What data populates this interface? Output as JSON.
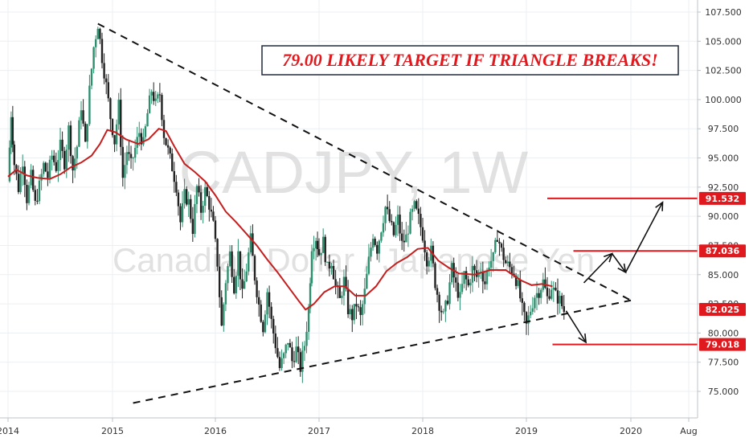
{
  "chart_data": {
    "type": "candlestick",
    "symbol_watermark": "CADJPY, 1W",
    "name_watermark": "Canadian Dollar / Japanese Yen",
    "annotation": "79.00 LIKELY TARGET IF TRIANGLE BREAKS!",
    "x_ticks": [
      "2014",
      "2015",
      "2016",
      "2017",
      "2018",
      "2019",
      "2020",
      "Aug"
    ],
    "y_ticks": [
      "75.000",
      "77.500",
      "80.000",
      "82.500",
      "85.000",
      "87.500",
      "90.000",
      "92.500",
      "95.000",
      "97.500",
      "100.000",
      "102.500",
      "105.000",
      "107.500"
    ],
    "ylim": [
      72.5,
      108.5
    ],
    "xlim": [
      2014.0,
      2020.7
    ],
    "grid": true,
    "price_labels": [
      {
        "value": 91.532,
        "text": "91.532",
        "color": "#e0191e"
      },
      {
        "value": 87.036,
        "text": "87.036",
        "color": "#e0191e"
      },
      {
        "value": 82.025,
        "text": "82.025",
        "color": "#e0191e"
      },
      {
        "value": 79.018,
        "text": "79.018",
        "color": "#e0191e"
      }
    ],
    "horizontal_levels": [
      {
        "value": 91.532,
        "x_start": 2019.2
      },
      {
        "value": 87.036,
        "x_start": 2019.45
      },
      {
        "value": 79.018,
        "x_start": 2019.25
      }
    ],
    "trendlines": [
      {
        "style": "dashed",
        "from": {
          "x": 2014.86,
          "y": 106.5
        },
        "to": {
          "x": 2020.0,
          "y": 82.8
        }
      },
      {
        "style": "dashed",
        "from": {
          "x": 2015.2,
          "y": 74.0
        },
        "to": {
          "x": 2020.0,
          "y": 82.8
        }
      }
    ],
    "arrows": [
      {
        "from": {
          "x": 2019.55,
          "y": 84.3
        },
        "to": {
          "x": 2019.82,
          "y": 86.8
        }
      },
      {
        "from": {
          "x": 2019.82,
          "y": 86.8
        },
        "to": {
          "x": 2019.95,
          "y": 85.2
        }
      },
      {
        "from": {
          "x": 2019.95,
          "y": 85.2
        },
        "to": {
          "x": 2020.32,
          "y": 91.2
        }
      },
      {
        "from": {
          "x": 2019.38,
          "y": 81.9
        },
        "to": {
          "x": 2019.57,
          "y": 79.2
        }
      }
    ],
    "series": [
      {
        "name": "",
        "kind": "moving-average",
        "color": "#c41e1e",
        "points": [
          [
            2014.0,
            93.4
          ],
          [
            2014.08,
            94.0
          ],
          [
            2014.18,
            93.5
          ],
          [
            2014.28,
            93.3
          ],
          [
            2014.4,
            93.2
          ],
          [
            2014.5,
            93.6
          ],
          [
            2014.6,
            94.2
          ],
          [
            2014.7,
            94.6
          ],
          [
            2014.8,
            95.2
          ],
          [
            2014.88,
            96.2
          ],
          [
            2014.95,
            97.4
          ],
          [
            2015.03,
            97.2
          ],
          [
            2015.13,
            96.6
          ],
          [
            2015.25,
            96.2
          ],
          [
            2015.35,
            96.6
          ],
          [
            2015.45,
            97.5
          ],
          [
            2015.52,
            97.3
          ],
          [
            2015.6,
            96.0
          ],
          [
            2015.7,
            94.5
          ],
          [
            2015.8,
            93.8
          ],
          [
            2015.9,
            93.0
          ],
          [
            2016.0,
            91.8
          ],
          [
            2016.1,
            90.4
          ],
          [
            2016.2,
            89.5
          ],
          [
            2016.3,
            88.5
          ],
          [
            2016.4,
            87.5
          ],
          [
            2016.5,
            86.3
          ],
          [
            2016.6,
            85.2
          ],
          [
            2016.7,
            84.0
          ],
          [
            2016.8,
            82.8
          ],
          [
            2016.87,
            82.0
          ],
          [
            2016.95,
            82.5
          ],
          [
            2017.05,
            83.5
          ],
          [
            2017.15,
            84.0
          ],
          [
            2017.25,
            84.0
          ],
          [
            2017.35,
            83.2
          ],
          [
            2017.45,
            83.2
          ],
          [
            2017.55,
            84.0
          ],
          [
            2017.65,
            85.3
          ],
          [
            2017.75,
            86.0
          ],
          [
            2017.85,
            86.5
          ],
          [
            2017.95,
            87.2
          ],
          [
            2018.05,
            87.3
          ],
          [
            2018.15,
            86.2
          ],
          [
            2018.25,
            85.6
          ],
          [
            2018.35,
            85.1
          ],
          [
            2018.5,
            85.0
          ],
          [
            2018.65,
            85.4
          ],
          [
            2018.8,
            85.4
          ],
          [
            2018.95,
            84.5
          ],
          [
            2019.05,
            84.1
          ],
          [
            2019.15,
            84.2
          ],
          [
            2019.25,
            84.0
          ]
        ]
      },
      {
        "name": "",
        "kind": "price-path",
        "color": "#2e8f6f",
        "points": [
          [
            2014.0,
            93.0
          ],
          [
            2014.03,
            98.8
          ],
          [
            2014.06,
            94.5
          ],
          [
            2014.1,
            92.4
          ],
          [
            2014.14,
            94.8
          ],
          [
            2014.18,
            91.5
          ],
          [
            2014.22,
            93.4
          ],
          [
            2014.26,
            91.0
          ],
          [
            2014.3,
            92.6
          ],
          [
            2014.34,
            94.4
          ],
          [
            2014.38,
            93.4
          ],
          [
            2014.42,
            95.2
          ],
          [
            2014.46,
            94.2
          ],
          [
            2014.5,
            96.0
          ],
          [
            2014.54,
            94.6
          ],
          [
            2014.58,
            97.5
          ],
          [
            2014.62,
            94.0
          ],
          [
            2014.66,
            96.0
          ],
          [
            2014.7,
            99.5
          ],
          [
            2014.74,
            96.0
          ],
          [
            2014.78,
            100.8
          ],
          [
            2014.82,
            104.5
          ],
          [
            2014.86,
            106.5
          ],
          [
            2014.9,
            103.6
          ],
          [
            2014.94,
            101.2
          ],
          [
            2014.98,
            98.5
          ],
          [
            2015.02,
            96.4
          ],
          [
            2015.06,
            99.5
          ],
          [
            2015.1,
            93.3
          ],
          [
            2015.14,
            95.6
          ],
          [
            2015.18,
            94.4
          ],
          [
            2015.22,
            95.8
          ],
          [
            2015.26,
            97.2
          ],
          [
            2015.3,
            96.2
          ],
          [
            2015.34,
            98.8
          ],
          [
            2015.38,
            100.8
          ],
          [
            2015.42,
            99.6
          ],
          [
            2015.46,
            100.5
          ],
          [
            2015.5,
            97.0
          ],
          [
            2015.54,
            95.6
          ],
          [
            2015.58,
            94.2
          ],
          [
            2015.62,
            92.6
          ],
          [
            2015.66,
            89.5
          ],
          [
            2015.7,
            91.8
          ],
          [
            2015.74,
            91.2
          ],
          [
            2015.78,
            88.9
          ],
          [
            2015.82,
            92.5
          ],
          [
            2015.86,
            90.5
          ],
          [
            2015.9,
            92.2
          ],
          [
            2015.94,
            91.0
          ],
          [
            2015.98,
            89.2
          ],
          [
            2016.02,
            86.0
          ],
          [
            2016.06,
            80.5
          ],
          [
            2016.1,
            84.5
          ],
          [
            2016.14,
            86.8
          ],
          [
            2016.18,
            84.0
          ],
          [
            2016.22,
            86.8
          ],
          [
            2016.26,
            83.2
          ],
          [
            2016.3,
            85.5
          ],
          [
            2016.34,
            88.0
          ],
          [
            2016.38,
            84.8
          ],
          [
            2016.42,
            82.4
          ],
          [
            2016.46,
            80.5
          ],
          [
            2016.5,
            83.6
          ],
          [
            2016.54,
            81.0
          ],
          [
            2016.58,
            79.0
          ],
          [
            2016.62,
            77.0
          ],
          [
            2016.66,
            78.0
          ],
          [
            2016.7,
            79.4
          ],
          [
            2016.74,
            77.6
          ],
          [
            2016.78,
            78.6
          ],
          [
            2016.82,
            77.0
          ],
          [
            2016.86,
            79.0
          ],
          [
            2016.9,
            82.0
          ],
          [
            2016.93,
            87.5
          ],
          [
            2016.97,
            88.2
          ],
          [
            2017.0,
            86.8
          ],
          [
            2017.04,
            87.8
          ],
          [
            2017.08,
            85.5
          ],
          [
            2017.12,
            86.2
          ],
          [
            2017.16,
            84.0
          ],
          [
            2017.2,
            82.8
          ],
          [
            2017.24,
            84.5
          ],
          [
            2017.28,
            82.0
          ],
          [
            2017.32,
            81.4
          ],
          [
            2017.36,
            82.5
          ],
          [
            2017.4,
            81.3
          ],
          [
            2017.44,
            83.5
          ],
          [
            2017.48,
            86.2
          ],
          [
            2017.52,
            88.5
          ],
          [
            2017.56,
            87.2
          ],
          [
            2017.6,
            89.0
          ],
          [
            2017.64,
            90.8
          ],
          [
            2017.68,
            89.6
          ],
          [
            2017.72,
            88.4
          ],
          [
            2017.76,
            89.8
          ],
          [
            2017.8,
            87.6
          ],
          [
            2017.84,
            88.2
          ],
          [
            2017.88,
            89.8
          ],
          [
            2017.92,
            90.8
          ],
          [
            2017.96,
            89.8
          ],
          [
            2018.0,
            88.4
          ],
          [
            2018.04,
            86.3
          ],
          [
            2018.08,
            87.0
          ],
          [
            2018.12,
            84.3
          ],
          [
            2018.16,
            82.5
          ],
          [
            2018.2,
            81.4
          ],
          [
            2018.24,
            83.0
          ],
          [
            2018.28,
            85.5
          ],
          [
            2018.32,
            84.0
          ],
          [
            2018.36,
            83.0
          ],
          [
            2018.4,
            85.0
          ],
          [
            2018.44,
            84.0
          ],
          [
            2018.48,
            85.5
          ],
          [
            2018.52,
            84.8
          ],
          [
            2018.56,
            85.5
          ],
          [
            2018.6,
            84.3
          ],
          [
            2018.64,
            86.0
          ],
          [
            2018.68,
            86.4
          ],
          [
            2018.72,
            88.4
          ],
          [
            2018.76,
            87.0
          ],
          [
            2018.8,
            86.0
          ],
          [
            2018.84,
            85.6
          ],
          [
            2018.88,
            85.2
          ],
          [
            2018.92,
            84.0
          ],
          [
            2018.96,
            82.0
          ],
          [
            2019.0,
            80.6
          ],
          [
            2019.04,
            82.0
          ],
          [
            2019.08,
            83.2
          ],
          [
            2019.12,
            83.6
          ],
          [
            2019.16,
            84.4
          ],
          [
            2019.2,
            83.0
          ],
          [
            2019.24,
            84.0
          ],
          [
            2019.28,
            83.2
          ],
          [
            2019.32,
            82.8
          ],
          [
            2019.36,
            81.9
          ]
        ]
      }
    ]
  }
}
